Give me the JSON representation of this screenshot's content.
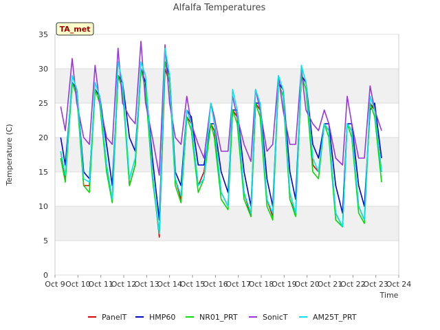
{
  "chart_data": {
    "type": "line",
    "title": "Alfalfa Temperatures",
    "xlabel": "Time",
    "ylabel": "Temperature (C)",
    "badge": "TA_met",
    "ylim": [
      0,
      35
    ],
    "yticks": [
      0,
      5,
      10,
      15,
      20,
      25,
      30,
      35
    ],
    "xlim": [
      9,
      24
    ],
    "xticks": [
      {
        "value": 9,
        "label": "Oct 9"
      },
      {
        "value": 10,
        "label": "Oct 10"
      },
      {
        "value": 11,
        "label": "Oct 11"
      },
      {
        "value": 12,
        "label": "Oct 12"
      },
      {
        "value": 13,
        "label": "Oct 13"
      },
      {
        "value": 14,
        "label": "Oct 14"
      },
      {
        "value": 15,
        "label": "Oct 15"
      },
      {
        "value": 16,
        "label": "Oct 16"
      },
      {
        "value": 17,
        "label": "Oct 17"
      },
      {
        "value": 18,
        "label": "Oct 18"
      },
      {
        "value": 19,
        "label": "Oct 19"
      },
      {
        "value": 20,
        "label": "Oct 20"
      },
      {
        "value": 21,
        "label": "Oct 21"
      },
      {
        "value": 22,
        "label": "Oct 22"
      },
      {
        "value": 23,
        "label": "Oct 23"
      },
      {
        "value": 24,
        "label": "Oct 24"
      }
    ],
    "grid": true,
    "background_bands": "alternating light gray",
    "legend_position": "bottom-center",
    "series": [
      {
        "name": "PanelT",
        "color": "#dd0000",
        "x": [
          9.25,
          9.45,
          9.75,
          9.95,
          10.25,
          10.5,
          10.75,
          10.95,
          11.25,
          11.5,
          11.75,
          11.95,
          12.25,
          12.5,
          12.75,
          12.95,
          13.25,
          13.55,
          13.8,
          14.0,
          14.25,
          14.5,
          14.75,
          14.95,
          15.25,
          15.5,
          15.8,
          15.95,
          16.25,
          16.55,
          16.75,
          16.95,
          17.25,
          17.55,
          17.75,
          17.95,
          18.25,
          18.5,
          18.75,
          18.95,
          19.25,
          19.5,
          19.75,
          19.95,
          20.25,
          20.5,
          20.75,
          20.95,
          21.25,
          21.55,
          21.75,
          21.95,
          22.25,
          22.5,
          22.75,
          22.95,
          23.25
        ],
        "y": [
          18,
          14,
          28,
          27,
          13,
          13,
          27,
          26,
          16,
          11,
          29,
          28,
          13,
          16,
          30,
          28,
          15,
          5.5,
          30,
          28,
          14,
          11,
          23,
          22,
          13,
          15,
          22,
          21,
          12,
          10,
          24,
          23,
          12,
          8.5,
          25,
          24,
          11,
          8.5,
          28,
          27,
          11,
          9,
          29,
          28,
          16,
          15,
          22,
          21,
          9,
          7,
          22,
          21,
          10,
          8,
          25,
          24,
          15
        ]
      },
      {
        "name": "HMP60",
        "color": "#0000cc",
        "x": [
          9.25,
          9.45,
          9.75,
          9.95,
          10.25,
          10.5,
          10.75,
          10.95,
          11.25,
          11.5,
          11.75,
          11.95,
          12.25,
          12.5,
          12.75,
          12.95,
          13.25,
          13.55,
          13.8,
          14.0,
          14.25,
          14.5,
          14.75,
          14.95,
          15.25,
          15.5,
          15.8,
          15.95,
          16.25,
          16.55,
          16.75,
          16.95,
          17.25,
          17.55,
          17.75,
          17.95,
          18.25,
          18.5,
          18.75,
          18.95,
          19.25,
          19.5,
          19.75,
          19.95,
          20.25,
          20.5,
          20.75,
          20.95,
          21.25,
          21.55,
          21.75,
          21.95,
          22.25,
          22.5,
          22.75,
          22.95,
          23.25
        ],
        "y": [
          20,
          16,
          28,
          27,
          15,
          14,
          27,
          26,
          19,
          13,
          29,
          28,
          20,
          18,
          30,
          28,
          17,
          8,
          31,
          29,
          15,
          13,
          24,
          23,
          16,
          16,
          22,
          22,
          15,
          12,
          24,
          24,
          15,
          10,
          25,
          25,
          14,
          10,
          28,
          27,
          15,
          11,
          29,
          28,
          19,
          17,
          22,
          22,
          13,
          9,
          22,
          22,
          13,
          10,
          24,
          25,
          17
        ]
      },
      {
        "name": "NR01_PRT",
        "color": "#00dd00",
        "x": [
          9.25,
          9.45,
          9.75,
          9.95,
          10.25,
          10.5,
          10.75,
          10.95,
          11.25,
          11.5,
          11.75,
          11.95,
          12.25,
          12.5,
          12.75,
          12.95,
          13.25,
          13.55,
          13.8,
          14.0,
          14.25,
          14.5,
          14.75,
          14.95,
          15.25,
          15.5,
          15.8,
          15.95,
          16.25,
          16.55,
          16.75,
          16.95,
          17.25,
          17.55,
          17.75,
          17.95,
          18.25,
          18.5,
          18.75,
          18.95,
          19.25,
          19.5,
          19.75,
          19.95,
          20.25,
          20.5,
          20.75,
          20.95,
          21.25,
          21.55,
          21.75,
          21.95,
          22.25,
          22.5,
          22.75,
          22.95,
          23.25
        ],
        "y": [
          17,
          13.5,
          28,
          26,
          13,
          12,
          27,
          25,
          15,
          10.5,
          29,
          27,
          13,
          16,
          30,
          27,
          14,
          6,
          31,
          28,
          13,
          10.5,
          23,
          21,
          12,
          14,
          22,
          20,
          11,
          9.5,
          24,
          22,
          11,
          8.5,
          25,
          23,
          10,
          8,
          28,
          26,
          11,
          8.5,
          29,
          27,
          15,
          14,
          22,
          20,
          8,
          7,
          22,
          20,
          9,
          7.5,
          25,
          23,
          13.5
        ]
      },
      {
        "name": "SonicT",
        "color": "#9933dd",
        "x": [
          9.25,
          9.45,
          9.75,
          9.95,
          10.25,
          10.5,
          10.75,
          10.95,
          11.25,
          11.5,
          11.75,
          11.95,
          12.25,
          12.5,
          12.75,
          12.95,
          13.25,
          13.55,
          13.8,
          14.0,
          14.25,
          14.5,
          14.75,
          14.95,
          15.25,
          15.5,
          15.8,
          15.95,
          16.25,
          16.55,
          16.75,
          16.95,
          17.25,
          17.55,
          17.75,
          17.95,
          18.25,
          18.5,
          18.75,
          18.95,
          19.25,
          19.5,
          19.75,
          19.95,
          20.25,
          20.5,
          20.75,
          20.95,
          21.25,
          21.55,
          21.75,
          21.95,
          22.25,
          22.5,
          22.75,
          22.95,
          23.25
        ],
        "y": [
          24.5,
          21,
          31.5,
          25,
          20,
          19,
          30.5,
          25,
          20,
          19,
          33,
          25,
          23,
          22,
          34,
          25,
          20,
          14.5,
          33.5,
          25,
          20,
          19,
          26,
          22,
          19,
          17,
          25,
          23,
          18,
          18,
          26,
          23,
          19,
          16.5,
          27,
          24,
          18,
          19,
          29,
          24,
          19,
          19,
          30,
          24,
          22,
          21,
          24,
          22,
          17,
          16,
          26,
          22,
          17,
          17,
          27.5,
          24,
          21
        ]
      },
      {
        "name": "AM25T_PRT",
        "color": "#00e5ee",
        "x": [
          9.25,
          9.45,
          9.75,
          9.95,
          10.25,
          10.5,
          10.75,
          10.95,
          11.25,
          11.5,
          11.75,
          11.95,
          12.25,
          12.5,
          12.75,
          12.95,
          13.25,
          13.55,
          13.8,
          14.0,
          14.25,
          14.5,
          14.75,
          14.95,
          15.25,
          15.5,
          15.8,
          15.95,
          16.25,
          16.55,
          16.75,
          16.95,
          17.25,
          17.55,
          17.75,
          17.95,
          18.25,
          18.5,
          18.75,
          18.95,
          19.25,
          19.5,
          19.75,
          19.95,
          20.25,
          20.5,
          20.75,
          20.95,
          21.25,
          21.55,
          21.75,
          21.95,
          22.25,
          22.5,
          22.75,
          22.95,
          23.25
        ],
        "y": [
          18,
          14.5,
          29,
          27,
          14,
          13.5,
          28,
          26,
          16,
          11,
          31,
          28,
          14,
          17,
          31,
          29,
          15,
          6,
          33,
          29,
          14,
          11.5,
          24,
          22,
          13,
          14,
          25,
          22,
          12,
          10,
          27,
          24,
          12,
          9,
          27,
          25,
          11,
          9,
          29,
          27,
          12,
          9,
          30.5,
          28,
          17,
          15,
          22,
          21,
          9,
          7,
          22,
          21,
          10,
          8,
          26,
          24,
          15
        ]
      }
    ]
  }
}
